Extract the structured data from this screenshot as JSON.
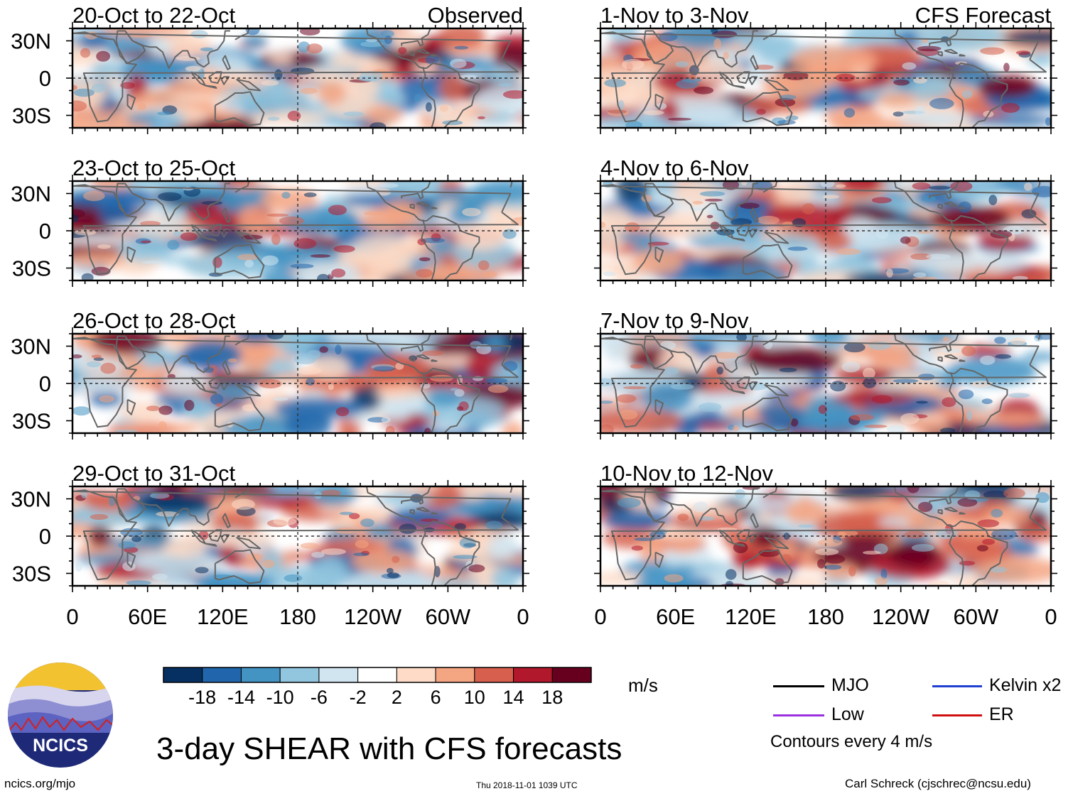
{
  "chart_data": {
    "type": "heatmap",
    "title": "3-day SHEAR with CFS forecasts",
    "units": "m/s",
    "x_tick_labels": [
      "0",
      "60E",
      "120E",
      "180",
      "120W",
      "60W",
      "0"
    ],
    "y_tick_labels": [
      "30N",
      "0",
      "30S"
    ],
    "x_range_deg": [
      0,
      360
    ],
    "y_range_deg": [
      -40,
      40
    ],
    "colorbar": {
      "labels": [
        "-18",
        "-14",
        "-10",
        "-6",
        "-2",
        "2",
        "6",
        "10",
        "14",
        "18"
      ],
      "colors": [
        "#053061",
        "#2166ac",
        "#4393c3",
        "#92c5de",
        "#d1e5f0",
        "#ffffff",
        "#fddbc7",
        "#f4a582",
        "#d6604d",
        "#b2182b",
        "#67001f"
      ]
    },
    "panels": [
      {
        "title": "20-Oct to 22-Oct",
        "tag": "Observed",
        "column": "left",
        "row": 1
      },
      {
        "title": "23-Oct to 25-Oct",
        "tag": "",
        "column": "left",
        "row": 2
      },
      {
        "title": "26-Oct to 28-Oct",
        "tag": "",
        "column": "left",
        "row": 3
      },
      {
        "title": "29-Oct to 31-Oct",
        "tag": "",
        "column": "left",
        "row": 4
      },
      {
        "title": "1-Nov to 3-Nov",
        "tag": "CFS Forecast",
        "column": "right",
        "row": 1
      },
      {
        "title": "4-Nov to 6-Nov",
        "tag": "",
        "column": "right",
        "row": 2
      },
      {
        "title": "7-Nov to 9-Nov",
        "tag": "",
        "column": "right",
        "row": 3
      },
      {
        "title": "10-Nov to 12-Nov",
        "tag": "",
        "column": "right",
        "row": 4
      }
    ],
    "legend": [
      {
        "label": "MJO",
        "color": "#000000"
      },
      {
        "label": "Kelvin x2",
        "color": "#1f3fd0"
      },
      {
        "label": "Low",
        "color": "#9b30e0"
      },
      {
        "label": "ER",
        "color": "#d01010"
      }
    ],
    "contour_note": "Contours every 4 m/s"
  },
  "logo_text": "NCICS",
  "footer": {
    "left": "ncics.org/mjo",
    "center": "Thu 2018-11-01 1039 UTC",
    "right": "Carl Schreck (cjschrec@ncsu.edu)"
  }
}
